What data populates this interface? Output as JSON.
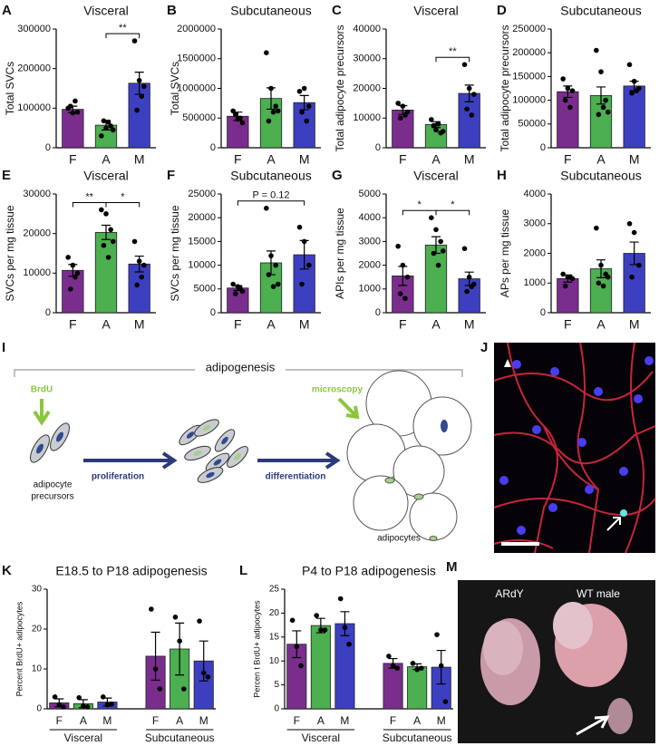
{
  "chart_data": [
    {
      "type": "bar",
      "panel": "A",
      "title": "Visceral",
      "ylabel": "Total SVCs",
      "categories": [
        "F",
        "A",
        "M"
      ],
      "colors": [
        "#7b2d8e",
        "#4caf50",
        "#3c3fc0"
      ],
      "values": [
        97000,
        57000,
        163000
      ],
      "errors": [
        8000,
        12000,
        28000
      ],
      "points": [
        [
          100000,
          88000,
          90000,
          105000,
          118000
        ],
        [
          30000,
          50000,
          55000,
          68000,
          65000,
          45000
        ],
        [
          270000,
          170000,
          155000,
          95000,
          130000
        ]
      ],
      "ylim": [
        0,
        300000
      ],
      "yticks": [
        0,
        100000,
        200000,
        300000
      ],
      "brackets": [
        {
          "between": [
            1,
            2
          ],
          "label": "**"
        }
      ]
    },
    {
      "type": "bar",
      "panel": "B",
      "title": "Subcutaneous",
      "ylabel": "Total SVCs",
      "categories": [
        "F",
        "A",
        "M"
      ],
      "colors": [
        "#7b2d8e",
        "#4caf50",
        "#3c3fc0"
      ],
      "values": [
        530000,
        830000,
        760000
      ],
      "errors": [
        70000,
        180000,
        120000
      ],
      "points": [
        [
          620000,
          480000,
          420000,
          560000,
          500000
        ],
        [
          1600000,
          1000000,
          700000,
          450000,
          600000,
          620000
        ],
        [
          950000,
          1000000,
          700000,
          600000,
          450000
        ]
      ],
      "ylim": [
        0,
        2000000
      ],
      "yticks": [
        0,
        500000,
        1000000,
        1500000,
        2000000
      ],
      "brackets": []
    },
    {
      "type": "bar",
      "panel": "C",
      "title": "Visceral",
      "ylabel": "Total adipocyte precursors",
      "categories": [
        "F",
        "A",
        "M"
      ],
      "colors": [
        "#7b2d8e",
        "#4caf50",
        "#3c3fc0"
      ],
      "values": [
        12700,
        7800,
        18300
      ],
      "errors": [
        1500,
        1000,
        2800
      ],
      "points": [
        [
          15000,
          14000,
          12000,
          10000,
          11000
        ],
        [
          9500,
          6000,
          5000,
          7500,
          8000,
          5500
        ],
        [
          28000,
          20000,
          18000,
          13000,
          11000
        ]
      ],
      "ylim": [
        0,
        40000
      ],
      "yticks": [
        0,
        10000,
        20000,
        30000,
        40000
      ],
      "brackets": [
        {
          "between": [
            1,
            2
          ],
          "label": "**"
        }
      ]
    },
    {
      "type": "bar",
      "panel": "D",
      "title": "Subcutaneous",
      "ylabel": "Total adipocyte precursors",
      "categories": [
        "F",
        "A",
        "M"
      ],
      "colors": [
        "#7b2d8e",
        "#4caf50",
        "#3c3fc0"
      ],
      "values": [
        118000,
        110000,
        130000
      ],
      "errors": [
        12000,
        18000,
        10000
      ],
      "points": [
        [
          145000,
          125000,
          120000,
          100000,
          85000
        ],
        [
          205000,
          160000,
          100000,
          70000,
          85000,
          75000
        ],
        [
          175000,
          140000,
          125000,
          115000,
          120000
        ]
      ],
      "ylim": [
        0,
        250000
      ],
      "yticks": [
        0,
        50000,
        100000,
        150000,
        200000,
        250000
      ],
      "brackets": []
    },
    {
      "type": "bar",
      "panel": "E",
      "title": "Visceral",
      "ylabel": "SVCs per mg tissue",
      "categories": [
        "F",
        "A",
        "M"
      ],
      "colors": [
        "#7b2d8e",
        "#4caf50",
        "#3c3fc0"
      ],
      "values": [
        10700,
        20300,
        12300
      ],
      "errors": [
        1500,
        1800,
        2000
      ],
      "points": [
        [
          14000,
          12000,
          10000,
          6000,
          9000
        ],
        [
          26000,
          25000,
          21000,
          17000,
          14000,
          18000
        ],
        [
          18000,
          13000,
          12000,
          7000,
          9000
        ]
      ],
      "ylim": [
        0,
        30000
      ],
      "yticks": [
        0,
        10000,
        20000,
        30000
      ],
      "brackets": [
        {
          "between": [
            0,
            1
          ],
          "label": "**"
        },
        {
          "between": [
            1,
            2
          ],
          "label": "*"
        }
      ]
    },
    {
      "type": "bar",
      "panel": "F",
      "title": "Subcutaneous",
      "ylabel": "SVCs per mg tissue",
      "categories": [
        "F",
        "A",
        "M"
      ],
      "colors": [
        "#7b2d8e",
        "#4caf50",
        "#3c3fc0"
      ],
      "values": [
        5200,
        10500,
        12200
      ],
      "errors": [
        500,
        2500,
        3000
      ],
      "points": [
        [
          6000,
          5500,
          4500,
          4000,
          5200
        ],
        [
          22000,
          12000,
          10000,
          8000,
          5500,
          6000
        ],
        [
          18000,
          15000,
          10000,
          6000
        ]
      ],
      "ylim": [
        0,
        25000
      ],
      "yticks": [
        0,
        5000,
        10000,
        15000,
        20000,
        25000
      ],
      "brackets": [
        {
          "between": [
            0,
            2
          ],
          "label": "P = 0.12"
        }
      ]
    },
    {
      "type": "bar",
      "panel": "G",
      "title": "Visceral",
      "ylabel": "APIs per mg tissue",
      "categories": [
        "F",
        "A",
        "M"
      ],
      "colors": [
        "#7b2d8e",
        "#4caf50",
        "#3c3fc0"
      ],
      "values": [
        1550,
        2850,
        1430
      ],
      "errors": [
        400,
        350,
        280
      ],
      "points": [
        [
          2800,
          2000,
          1500,
          800,
          600
        ],
        [
          4000,
          3500,
          3000,
          2500,
          2000,
          2600
        ],
        [
          2700,
          1500,
          1200,
          900,
          1100
        ]
      ],
      "ylim": [
        0,
        5000
      ],
      "yticks": [
        0,
        1000,
        2000,
        3000,
        4000,
        5000
      ],
      "brackets": [
        {
          "between": [
            0,
            1
          ],
          "label": "*"
        },
        {
          "between": [
            1,
            2
          ],
          "label": "*"
        }
      ]
    },
    {
      "type": "bar",
      "panel": "H",
      "title": "Subcutaneous",
      "ylabel": "APs  per mg tissue",
      "categories": [
        "F",
        "A",
        "M"
      ],
      "colors": [
        "#7b2d8e",
        "#4caf50",
        "#3c3fc0"
      ],
      "values": [
        1150,
        1480,
        2000
      ],
      "errors": [
        120,
        300,
        380
      ],
      "points": [
        [
          1300,
          1200,
          1150,
          900,
          1200
        ],
        [
          2850,
          1600,
          1300,
          1000,
          900,
          1200
        ],
        [
          3000,
          2700,
          1600,
          1200
        ]
      ],
      "ylim": [
        0,
        4000
      ],
      "yticks": [
        0,
        1000,
        2000,
        3000,
        4000
      ],
      "brackets": []
    },
    {
      "type": "grouped-bar",
      "panel": "K",
      "title": "E18.5 to P18 adipogenesis",
      "ylabel": "Percent BrdU+ adipocytes",
      "colors": [
        "#7b2d8e",
        "#4caf50",
        "#3c3fc0"
      ],
      "groups": [
        {
          "name": "Visceral",
          "categories": [
            "F",
            "A",
            "M"
          ],
          "values": [
            1.5,
            1.3,
            1.7
          ],
          "errors": [
            1,
            1,
            1
          ],
          "points": [
            [
              3,
              1,
              0.5
            ],
            [
              2.8,
              0.7,
              0.5
            ],
            [
              3,
              1,
              1.2
            ]
          ]
        },
        {
          "name": "Subcutaneous",
          "categories": [
            "F",
            "A",
            "M"
          ],
          "values": [
            13.2,
            15,
            12
          ],
          "errors": [
            6,
            6.5,
            5
          ],
          "points": [
            [
              25,
              10,
              5
            ],
            [
              23,
              17,
              5
            ],
            [
              22,
              9,
              8
            ]
          ]
        }
      ],
      "ylim": [
        0,
        30
      ],
      "yticks": [
        0,
        10,
        20,
        30
      ]
    },
    {
      "type": "grouped-bar",
      "panel": "L",
      "title": "P4 to P18 adipogenesis",
      "ylabel": "Percen t BrdU+ adipocytes",
      "colors": [
        "#7b2d8e",
        "#4caf50",
        "#3c3fc0"
      ],
      "groups": [
        {
          "name": "Visceral",
          "categories": [
            "F",
            "A",
            "M"
          ],
          "values": [
            13.5,
            17.4,
            17.8
          ],
          "errors": [
            2.8,
            1.5,
            2.5
          ],
          "points": [
            [
              18.5,
              13,
              9
            ],
            [
              19.5,
              16.5,
              16.5
            ],
            [
              23,
              17,
              13.5
            ]
          ]
        },
        {
          "name": "Subcutaneous",
          "categories": [
            "F",
            "A",
            "M"
          ],
          "values": [
            9.5,
            8.8,
            8.7
          ],
          "errors": [
            1,
            0.6,
            3.5
          ],
          "points": [
            [
              11,
              9,
              8.5
            ],
            [
              9.5,
              8.2,
              8.5
            ],
            [
              15.5,
              9,
              1.5
            ]
          ]
        }
      ],
      "ylim": [
        0,
        25
      ],
      "yticks": [
        0,
        5,
        10,
        15,
        20,
        25
      ]
    }
  ],
  "diagram": {
    "panel": "I",
    "title": "adipogenesis",
    "tracer": "BrdU",
    "precursors": [
      "adipocyte",
      "precursors"
    ],
    "step1": "proliferation",
    "step2": "differentiation",
    "readout": "microscopy",
    "product": "adipocytes"
  },
  "micrograph": {
    "panel": "J"
  },
  "photo": {
    "panel": "M",
    "labels": [
      "ARdY",
      "WT male"
    ]
  }
}
